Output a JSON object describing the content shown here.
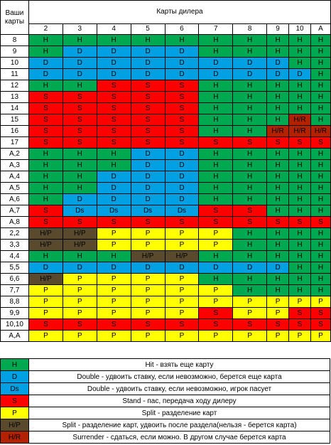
{
  "header": {
    "corner": "Ваши карты",
    "title": "Карты дилера",
    "dealer_cards": [
      "2",
      "3",
      "4",
      "5",
      "6",
      "7",
      "8",
      "9",
      "10",
      "A"
    ]
  },
  "colors": {
    "H": "#00a850",
    "D": "#00a0e3",
    "Ds": "#00a0e3",
    "S": "#ff0000",
    "P": "#ffff00",
    "H/P": "#594a2e",
    "H/R": "#b22200"
  },
  "rows": [
    {
      "hand": "8",
      "cells": [
        "H",
        "H",
        "H",
        "H",
        "H",
        "H",
        "H",
        "H",
        "H",
        "H"
      ]
    },
    {
      "hand": "9",
      "cells": [
        "H",
        "D",
        "D",
        "D",
        "D",
        "H",
        "H",
        "H",
        "H",
        "H"
      ]
    },
    {
      "hand": "10",
      "cells": [
        "D",
        "D",
        "D",
        "D",
        "D",
        "D",
        "D",
        "D",
        "H",
        "H"
      ]
    },
    {
      "hand": "11",
      "cells": [
        "D",
        "D",
        "D",
        "D",
        "D",
        "D",
        "D",
        "D",
        "D",
        "H"
      ]
    },
    {
      "hand": "12",
      "cells": [
        "H",
        "H",
        "S",
        "S",
        "S",
        "H",
        "H",
        "H",
        "H",
        "H"
      ]
    },
    {
      "hand": "13",
      "cells": [
        "S",
        "S",
        "S",
        "S",
        "S",
        "H",
        "H",
        "H",
        "H",
        "H"
      ]
    },
    {
      "hand": "14",
      "cells": [
        "S",
        "S",
        "S",
        "S",
        "S",
        "H",
        "H",
        "H",
        "H",
        "H"
      ]
    },
    {
      "hand": "15",
      "cells": [
        "S",
        "S",
        "S",
        "S",
        "S",
        "H",
        "H",
        "H",
        "H/R",
        "H"
      ]
    },
    {
      "hand": "16",
      "cells": [
        "S",
        "S",
        "S",
        "S",
        "S",
        "H",
        "H",
        "H/R",
        "H/R",
        "H/R"
      ]
    },
    {
      "hand": "17",
      "cells": [
        "S",
        "S",
        "S",
        "S",
        "S",
        "S",
        "S",
        "S",
        "S",
        "S"
      ]
    },
    {
      "hand": "A,2",
      "cells": [
        "H",
        "H",
        "H",
        "D",
        "D",
        "H",
        "H",
        "H",
        "H",
        "H"
      ]
    },
    {
      "hand": "A,3",
      "cells": [
        "H",
        "H",
        "H",
        "D",
        "D",
        "H",
        "H",
        "H",
        "H",
        "H"
      ]
    },
    {
      "hand": "A,4",
      "cells": [
        "H",
        "H",
        "D",
        "D",
        "D",
        "H",
        "H",
        "H",
        "H",
        "H"
      ]
    },
    {
      "hand": "A,5",
      "cells": [
        "H",
        "H",
        "D",
        "D",
        "D",
        "H",
        "H",
        "H",
        "H",
        "H"
      ]
    },
    {
      "hand": "A,6",
      "cells": [
        "H",
        "D",
        "D",
        "D",
        "D",
        "H",
        "H",
        "H",
        "H",
        "H"
      ]
    },
    {
      "hand": "A,7",
      "cells": [
        "S",
        "Ds",
        "Ds",
        "Ds",
        "Ds",
        "S",
        "S",
        "H",
        "H",
        "H"
      ]
    },
    {
      "hand": "A,8",
      "cells": [
        "S",
        "S",
        "S",
        "S",
        "S",
        "S",
        "S",
        "S",
        "S",
        "S"
      ]
    },
    {
      "hand": "2,2",
      "cells": [
        "H/P",
        "H/P",
        "P",
        "P",
        "P",
        "P",
        "H",
        "H",
        "H",
        "H"
      ]
    },
    {
      "hand": "3,3",
      "cells": [
        "H/P",
        "H/P",
        "P",
        "P",
        "P",
        "P",
        "H",
        "H",
        "H",
        "H"
      ]
    },
    {
      "hand": "4,4",
      "cells": [
        "H",
        "H",
        "H",
        "H/P",
        "H/P",
        "H",
        "H",
        "H",
        "H",
        "H"
      ]
    },
    {
      "hand": "5,5",
      "cells": [
        "D",
        "D",
        "D",
        "D",
        "D",
        "D",
        "D",
        "D",
        "H",
        "H"
      ]
    },
    {
      "hand": "6,6",
      "cells": [
        "H/P",
        "P",
        "P",
        "P",
        "P",
        "H",
        "H",
        "H",
        "H",
        "H"
      ]
    },
    {
      "hand": "7,7",
      "cells": [
        "P",
        "P",
        "P",
        "P",
        "P",
        "P",
        "H",
        "H",
        "H",
        "H"
      ]
    },
    {
      "hand": "8,8",
      "cells": [
        "P",
        "P",
        "P",
        "P",
        "P",
        "P",
        "P",
        "P",
        "P",
        "P"
      ]
    },
    {
      "hand": "9,9",
      "cells": [
        "P",
        "P",
        "P",
        "P",
        "P",
        "S",
        "P",
        "P",
        "S",
        "S"
      ]
    },
    {
      "hand": "10,10",
      "cells": [
        "S",
        "S",
        "S",
        "S",
        "S",
        "S",
        "S",
        "S",
        "S",
        "S"
      ]
    },
    {
      "hand": "A,A",
      "cells": [
        "P",
        "P",
        "P",
        "P",
        "P",
        "P",
        "P",
        "P",
        "P",
        "P"
      ]
    }
  ],
  "legend": [
    {
      "code": "H",
      "text": "Hit - взять еще карту"
    },
    {
      "code": "D",
      "text": "Double - удвоить ставку, если  невозможно, берется еще карта"
    },
    {
      "code": "Ds",
      "text": "Double - удвоить ставку, если невозможно, игрок пасует"
    },
    {
      "code": "S",
      "text": "Stand - пас, передача ходу дилеру"
    },
    {
      "code": "P",
      "text": "Split - разделение карт"
    },
    {
      "code": "H/P",
      "text": "Split - разделение карт, удвоить после разделa(нельзя - берется карта)"
    },
    {
      "code": "H/R",
      "text": "Surrender - сдаться, если можно. В другом случае берется карта"
    }
  ]
}
